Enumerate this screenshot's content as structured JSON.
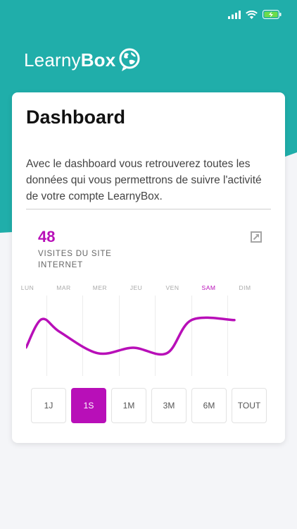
{
  "colors": {
    "teal": "#20aeaa",
    "accent": "#b80fb8",
    "card": "#ffffff",
    "background": "#f4f5f8"
  },
  "status_bar": {
    "icons": [
      "signal-icon",
      "wifi-icon",
      "battery-charging-icon"
    ]
  },
  "header": {
    "logo_light": "Learny",
    "logo_bold": "Box",
    "logo_icon": "globe-chat-icon"
  },
  "card": {
    "title": "Dashboard",
    "description": "Avec le dashboard vous retrouverez toutes les données qui vous permettrons de suivre l'activité de votre compte LearnyBox.",
    "stat": {
      "value": "48",
      "label": "VISITES DU SITE INTERNET",
      "expand_icon": "expand-icon"
    }
  },
  "chart_data": {
    "type": "line",
    "categories": [
      "LUN",
      "MAR",
      "MER",
      "JEU",
      "VEN",
      "SAM",
      "DIM"
    ],
    "active_category": "SAM",
    "series": [
      {
        "values": [
          61,
          45,
          18,
          25,
          18,
          60,
          60
        ]
      }
    ],
    "ylim": [
      0,
      100
    ],
    "grid": true
  },
  "ranges": {
    "items": [
      "1J",
      "1S",
      "1M",
      "3M",
      "6M",
      "TOUT"
    ],
    "active": "1S"
  }
}
